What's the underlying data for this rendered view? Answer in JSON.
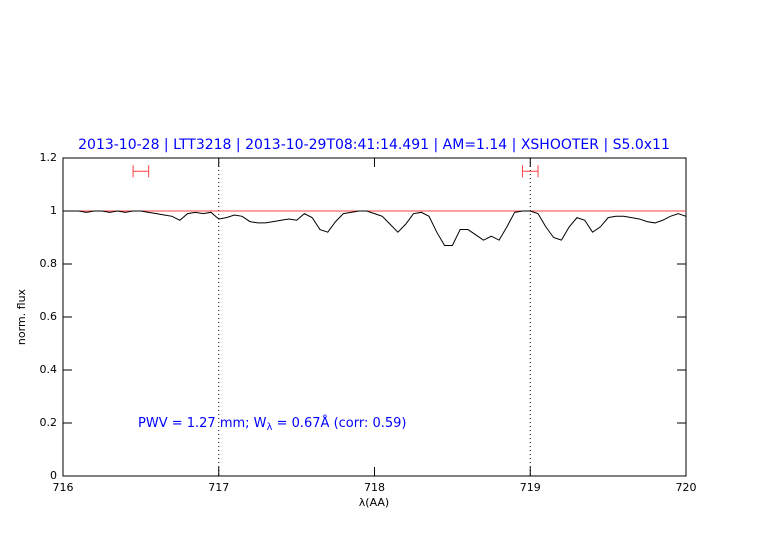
{
  "chart_data": {
    "type": "line",
    "title": "2013-10-28 | LTT3218 | 2013-10-29T08:41:14.491 | AM=1.14 | XSHOOTER | S5.0x11",
    "xlabel": "λ(AA)",
    "ylabel": "norm. flux",
    "annotation_parts": [
      "PWV = 1.27 mm; W",
      "λ",
      " = 0.67Å (corr: 0.59)"
    ],
    "xlim": [
      716,
      720
    ],
    "ylim": [
      0,
      1.2
    ],
    "xticks": [
      716,
      717,
      718,
      719,
      720
    ],
    "yticks": [
      0,
      0.2,
      0.4,
      0.6,
      0.8,
      1,
      1.2
    ],
    "vlines": [
      717,
      719
    ],
    "hline": 1,
    "hline_color": "#ff4040",
    "markers": [
      {
        "x": [
          716.45,
          716.55
        ],
        "y": 1.15
      },
      {
        "x": [
          718.95,
          719.05
        ],
        "y": 1.15
      }
    ],
    "marker_color": "#ff4040",
    "x": [
      716.0,
      716.05,
      716.1,
      716.15,
      716.2,
      716.25,
      716.3,
      716.35,
      716.4,
      716.45,
      716.5,
      716.55,
      716.6,
      716.65,
      716.7,
      716.75,
      716.8,
      716.85,
      716.9,
      716.95,
      717.0,
      717.05,
      717.1,
      717.15,
      717.2,
      717.25,
      717.3,
      717.35,
      717.4,
      717.45,
      717.5,
      717.55,
      717.6,
      717.65,
      717.7,
      717.75,
      717.8,
      717.85,
      717.9,
      717.95,
      718.0,
      718.05,
      718.1,
      718.15,
      718.2,
      718.25,
      718.3,
      718.35,
      718.4,
      718.45,
      718.5,
      718.55,
      718.6,
      718.65,
      718.7,
      718.75,
      718.8,
      718.85,
      718.9,
      718.95,
      719.0,
      719.05,
      719.1,
      719.15,
      719.2,
      719.25,
      719.3,
      719.35,
      719.4,
      719.45,
      719.5,
      719.55,
      719.6,
      719.65,
      719.7,
      719.75,
      719.8,
      719.85,
      719.9,
      719.95,
      720.0
    ],
    "series": [
      {
        "color": "#000000",
        "values": [
          1.0,
          1.0,
          1.0,
          0.995,
          1.0,
          1.0,
          0.995,
          1.0,
          0.995,
          1.0,
          1.0,
          0.995,
          0.99,
          0.985,
          0.98,
          0.965,
          0.99,
          0.995,
          0.99,
          0.995,
          0.97,
          0.975,
          0.985,
          0.98,
          0.96,
          0.955,
          0.955,
          0.96,
          0.965,
          0.97,
          0.965,
          0.99,
          0.975,
          0.93,
          0.92,
          0.96,
          0.99,
          0.995,
          1.0,
          1.0,
          0.99,
          0.98,
          0.95,
          0.92,
          0.95,
          0.99,
          0.995,
          0.98,
          0.92,
          0.87,
          0.87,
          0.93,
          0.93,
          0.91,
          0.89,
          0.905,
          0.89,
          0.94,
          0.995,
          1.0,
          1.0,
          0.99,
          0.94,
          0.9,
          0.89,
          0.94,
          0.975,
          0.965,
          0.92,
          0.94,
          0.975,
          0.98,
          0.98,
          0.975,
          0.97,
          0.96,
          0.955,
          0.965,
          0.98,
          0.99,
          0.98
        ]
      }
    ],
    "title_color": "#0000ff"
  }
}
